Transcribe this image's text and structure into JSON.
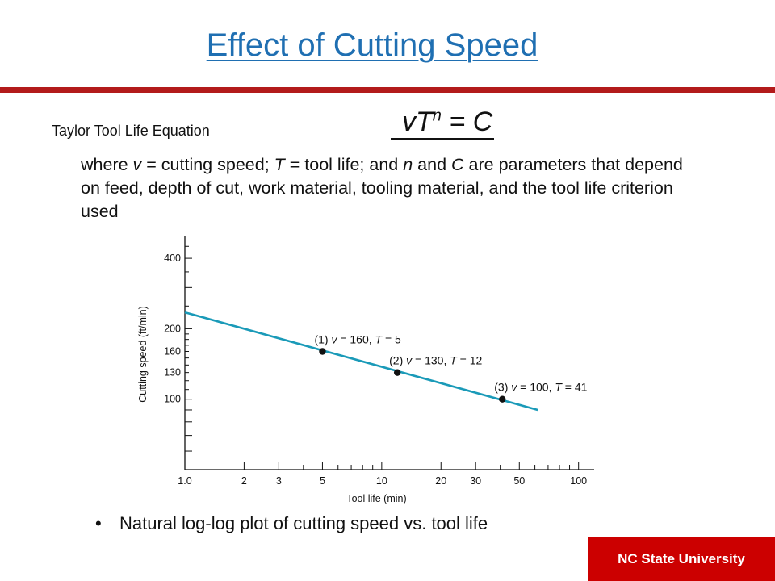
{
  "slide": {
    "title": "Effect of Cutting Speed",
    "equation_label": "Taylor Tool Life Equation",
    "equation": {
      "base": "vT",
      "exponent": "n",
      "rest": " = C"
    },
    "description": {
      "p1": "where ",
      "v": "v",
      "p2": " = cutting speed; ",
      "T": "T",
      "p3": " = tool life; and ",
      "n": "n",
      "p4": " and ",
      "C": "C",
      "p5": " are parameters that depend on feed, depth of cut, work material, tooling material, and the tool life criterion used"
    },
    "bullet": "Natural log-log plot of cutting speed vs. tool life",
    "footer": "NC State University"
  },
  "chart_data": {
    "type": "line",
    "x_scale": "log",
    "y_scale": "log",
    "xlabel": "Tool life (min)",
    "ylabel": "Cutting speed (ft/min)",
    "xlim": [
      1.0,
      120
    ],
    "ylim": [
      50,
      500
    ],
    "x_tick_labels": [
      "1.0",
      "2",
      "3",
      "5",
      "10",
      "20",
      "30",
      "50",
      "100"
    ],
    "x_tick_values": [
      1,
      2,
      3,
      5,
      10,
      20,
      30,
      50,
      100
    ],
    "y_tick_labels": [
      "100",
      "130",
      "160",
      "200",
      "400"
    ],
    "y_tick_values": [
      100,
      130,
      160,
      200,
      400
    ],
    "line_color": "#1a9ab8",
    "series": [
      {
        "x": [
          1.0,
          62
        ],
        "y": [
          235,
          90
        ]
      }
    ],
    "points": [
      {
        "x": 5,
        "y": 160,
        "label_prefix": "(1) ",
        "label_v": "v",
        "label_mid": " = 160, ",
        "label_T": "T",
        "label_end": " = 5"
      },
      {
        "x": 12,
        "y": 130,
        "label_prefix": "(2) ",
        "label_v": "v",
        "label_mid": " = 130, ",
        "label_T": "T",
        "label_end": " = 12"
      },
      {
        "x": 41,
        "y": 100,
        "label_prefix": "(3) ",
        "label_v": "v",
        "label_mid": " = 100, ",
        "label_T": "T",
        "label_end": " = 41"
      }
    ]
  }
}
